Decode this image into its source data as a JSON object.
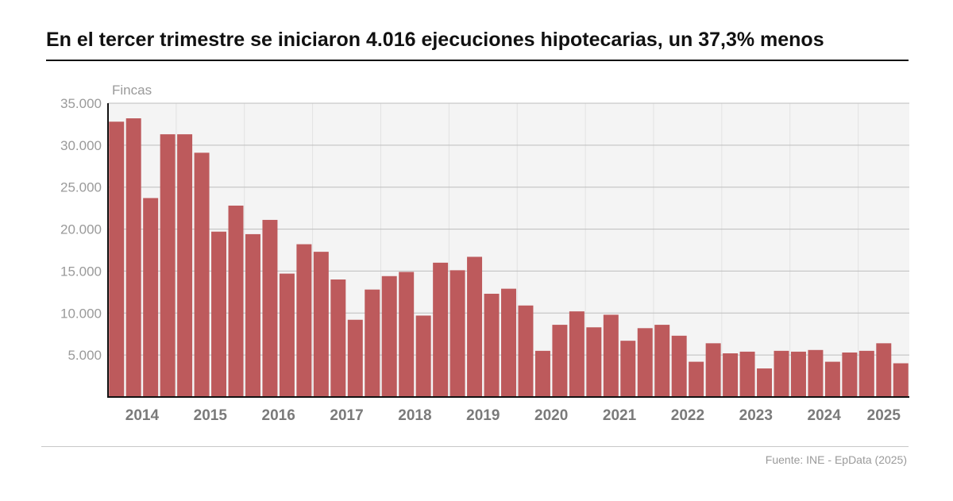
{
  "title": "En el tercer trimestre se iniciaron 4.016 ejecuciones hipotecarias, un 37,3% menos",
  "source": "Fuente: INE - EpData (2025)",
  "colors": {
    "bar": "#bd5a5c",
    "plot_bg": "#f4f4f4",
    "grid": "#bdbdbd",
    "axis": "#111111",
    "tick": "#9a9a9a",
    "year": "#7a7a7a"
  },
  "chart_data": {
    "type": "bar",
    "ylabel": "Fincas",
    "ylim": [
      0,
      35000
    ],
    "yticks": [
      5000,
      10000,
      15000,
      20000,
      25000,
      30000,
      35000
    ],
    "ytick_labels": [
      "5.000",
      "10.000",
      "15.000",
      "20.000",
      "25.000",
      "30.000",
      "35.000"
    ],
    "grid": true,
    "year_labels": [
      "2014",
      "2015",
      "2016",
      "2017",
      "2018",
      "2019",
      "2020",
      "2021",
      "2022",
      "2023",
      "2024",
      "2025"
    ],
    "categories": [
      "2014T1",
      "2014T2",
      "2014T3",
      "2014T4",
      "2015T1",
      "2015T2",
      "2015T3",
      "2015T4",
      "2016T1",
      "2016T2",
      "2016T3",
      "2016T4",
      "2017T1",
      "2017T2",
      "2017T3",
      "2017T4",
      "2018T1",
      "2018T2",
      "2018T3",
      "2018T4",
      "2019T1",
      "2019T2",
      "2019T3",
      "2019T4",
      "2020T1",
      "2020T2",
      "2020T3",
      "2020T4",
      "2021T1",
      "2021T2",
      "2021T3",
      "2021T4",
      "2022T1",
      "2022T2",
      "2022T3",
      "2022T4",
      "2023T1",
      "2023T2",
      "2023T3",
      "2023T4",
      "2024T1",
      "2024T2",
      "2024T3",
      "2024T4",
      "2025T1",
      "2025T2",
      "2025T3"
    ],
    "values": [
      32800,
      33200,
      23700,
      31300,
      31300,
      29100,
      19700,
      22800,
      19400,
      21100,
      14700,
      18200,
      17300,
      14000,
      9200,
      12800,
      14400,
      14900,
      9700,
      16000,
      15100,
      16700,
      12300,
      12900,
      10900,
      5500,
      8600,
      10200,
      8300,
      9800,
      6700,
      8200,
      8600,
      7300,
      4200,
      6400,
      5200,
      5400,
      3400,
      5500,
      5400,
      5600,
      4200,
      5300,
      5500,
      6400,
      4016
    ]
  }
}
